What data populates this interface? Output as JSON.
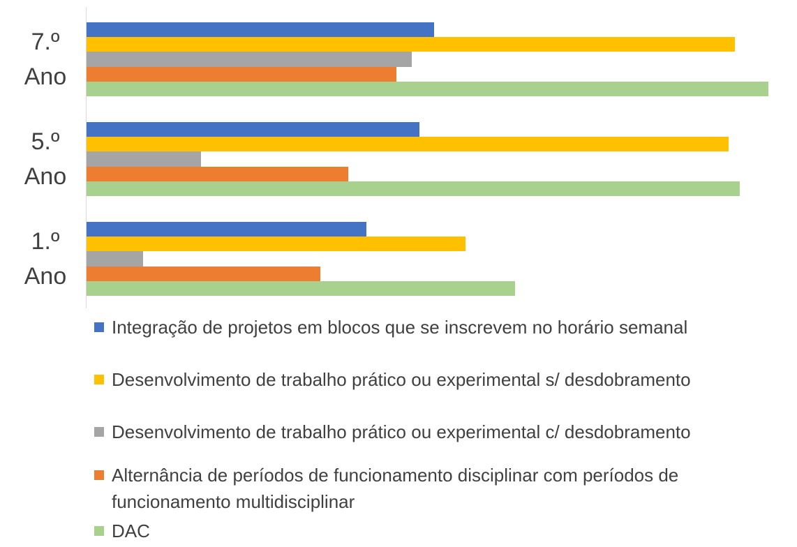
{
  "chart_data": {
    "type": "bar",
    "orientation": "horizontal",
    "categories": [
      "7.º Ano",
      "5.º Ano",
      "1.º Ano"
    ],
    "xlim": [
      0,
      977
    ],
    "series": [
      {
        "name": "Integração de projetos em blocos que se inscrevem no horário semanal",
        "color": "#4472c4",
        "values": [
          498,
          477,
          401
        ]
      },
      {
        "name": "Desenvolvimento de trabalho prático ou experimental s/ desdobramento",
        "color": "#ffc000",
        "values": [
          929,
          920,
          543
        ]
      },
      {
        "name": "Desenvolvimento de trabalho prático ou experimental c/ desdobramento",
        "color": "#a5a5a5",
        "values": [
          466,
          164,
          81
        ]
      },
      {
        "name": "Alternância de períodos de funcionamento disciplinar com períodos de funcionamento multidisciplinar",
        "color": "#ed7d31",
        "values": [
          444,
          375,
          335
        ]
      },
      {
        "name": "DAC",
        "color": "#a9d18e",
        "values": [
          977,
          936,
          614
        ]
      }
    ],
    "legend": "bottom"
  }
}
